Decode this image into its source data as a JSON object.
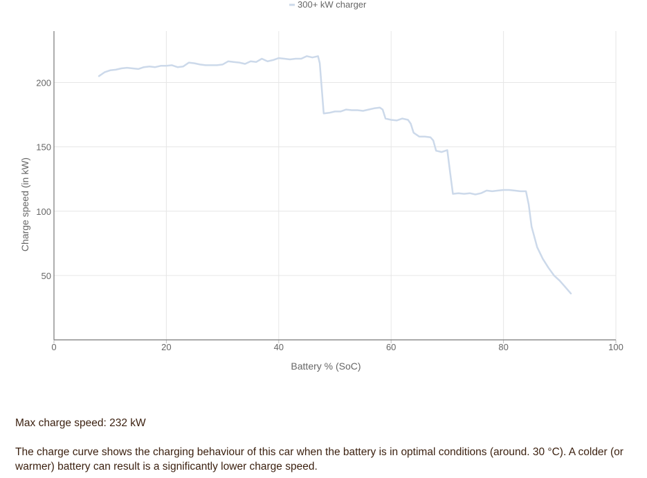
{
  "chart_data": {
    "type": "line",
    "title": "",
    "xlabel": "Battery % (SoC)",
    "ylabel": "Charge speed (in kW)",
    "xlim": [
      0,
      100
    ],
    "ylim": [
      0,
      240
    ],
    "xticks": [
      0,
      20,
      40,
      60,
      80,
      100
    ],
    "yticks": [
      50,
      100,
      150,
      200
    ],
    "grid": true,
    "legend_position": "top-center",
    "series": [
      {
        "name": "300+ kW charger",
        "color": "#ccd9ea",
        "points": [
          [
            8,
            205
          ],
          [
            9,
            208
          ],
          [
            10,
            209.5
          ],
          [
            11,
            210
          ],
          [
            12,
            211
          ],
          [
            13,
            211.5
          ],
          [
            14,
            211
          ],
          [
            15,
            210.5
          ],
          [
            16,
            212
          ],
          [
            17,
            212.5
          ],
          [
            18,
            212
          ],
          [
            19,
            213
          ],
          [
            20,
            213
          ],
          [
            21,
            213.5
          ],
          [
            22,
            212
          ],
          [
            23,
            212.5
          ],
          [
            24,
            215.5
          ],
          [
            25,
            215
          ],
          [
            26,
            214
          ],
          [
            27,
            213.5
          ],
          [
            28,
            213.5
          ],
          [
            29,
            213.5
          ],
          [
            30,
            214
          ],
          [
            31,
            216.5
          ],
          [
            32,
            216
          ],
          [
            33,
            215.5
          ],
          [
            34,
            214.5
          ],
          [
            35,
            216.5
          ],
          [
            36,
            216
          ],
          [
            37,
            218.5
          ],
          [
            38,
            216.5
          ],
          [
            39,
            217.5
          ],
          [
            40,
            219
          ],
          [
            41,
            218.5
          ],
          [
            42,
            218
          ],
          [
            43,
            218.5
          ],
          [
            44,
            218.5
          ],
          [
            45,
            220.5
          ],
          [
            46,
            219.5
          ],
          [
            47,
            220.5
          ],
          [
            47.3,
            215
          ],
          [
            48,
            176
          ],
          [
            49,
            176.5
          ],
          [
            50,
            177.5
          ],
          [
            51,
            177.5
          ],
          [
            52,
            179
          ],
          [
            53,
            178.5
          ],
          [
            54,
            178.5
          ],
          [
            55,
            178
          ],
          [
            56,
            179
          ],
          [
            57,
            180
          ],
          [
            58,
            180.5
          ],
          [
            58.5,
            179
          ],
          [
            59,
            172
          ],
          [
            60,
            171
          ],
          [
            61,
            170.5
          ],
          [
            62,
            172
          ],
          [
            63,
            171
          ],
          [
            63.5,
            168
          ],
          [
            64,
            161
          ],
          [
            65,
            158
          ],
          [
            66,
            158
          ],
          [
            67,
            157.5
          ],
          [
            67.5,
            155
          ],
          [
            68,
            147
          ],
          [
            69,
            146
          ],
          [
            70,
            147.5
          ],
          [
            70.5,
            130
          ],
          [
            71,
            113.5
          ],
          [
            72,
            114
          ],
          [
            73,
            113.5
          ],
          [
            74,
            114
          ],
          [
            75,
            113
          ],
          [
            76,
            114
          ],
          [
            77,
            116
          ],
          [
            78,
            115.5
          ],
          [
            79,
            116
          ],
          [
            80,
            116.5
          ],
          [
            81,
            116.5
          ],
          [
            82,
            116
          ],
          [
            83,
            115.5
          ],
          [
            84,
            115.5
          ],
          [
            84.5,
            105
          ],
          [
            85,
            88
          ],
          [
            86,
            72
          ],
          [
            87,
            63
          ],
          [
            88,
            56
          ],
          [
            89,
            50
          ],
          [
            90,
            46
          ],
          [
            91,
            41
          ],
          [
            92,
            36
          ]
        ]
      }
    ]
  },
  "info": {
    "max_speed": "Max charge speed: 232 kW",
    "description": "The charge curve shows the charging behaviour of this car when the battery is in optimal conditions (around. 30 °C). A colder (or warmer) battery can result is a significantly lower charge speed."
  }
}
